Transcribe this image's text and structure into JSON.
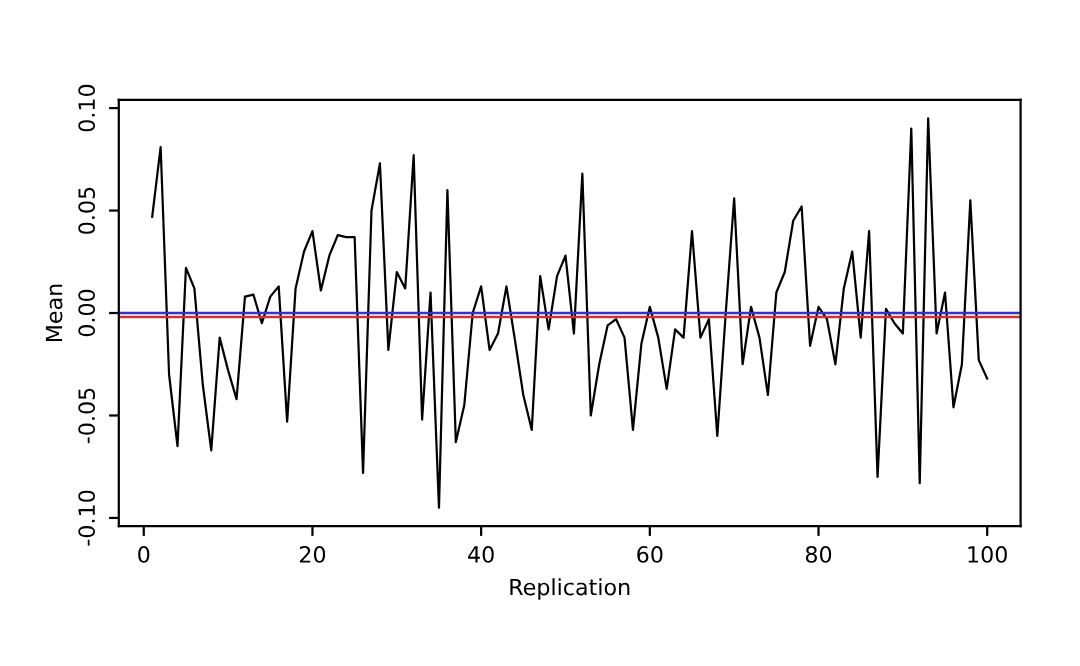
{
  "chart_data": {
    "type": "line",
    "xlabel": "Replication",
    "ylabel": "Mean",
    "x": [
      1,
      2,
      3,
      4,
      5,
      6,
      7,
      8,
      9,
      10,
      11,
      12,
      13,
      14,
      15,
      16,
      17,
      18,
      19,
      20,
      21,
      22,
      23,
      24,
      25,
      26,
      27,
      28,
      29,
      30,
      31,
      32,
      33,
      34,
      35,
      36,
      37,
      38,
      39,
      40,
      41,
      42,
      43,
      44,
      45,
      46,
      47,
      48,
      49,
      50,
      51,
      52,
      53,
      54,
      55,
      56,
      57,
      58,
      59,
      60,
      61,
      62,
      63,
      64,
      65,
      66,
      67,
      68,
      69,
      70,
      71,
      72,
      73,
      74,
      75,
      76,
      77,
      78,
      79,
      80,
      81,
      82,
      83,
      84,
      85,
      86,
      87,
      88,
      89,
      90,
      91,
      92,
      93,
      94,
      95,
      96,
      97,
      98,
      99,
      100
    ],
    "series": [
      {
        "color": "#000000",
        "values": [
          0.047,
          0.081,
          -0.03,
          -0.065,
          0.022,
          0.012,
          -0.035,
          -0.067,
          -0.012,
          -0.028,
          -0.042,
          0.008,
          0.009,
          -0.005,
          0.008,
          0.013,
          -0.053,
          0.012,
          0.03,
          0.04,
          0.011,
          0.028,
          0.038,
          0.037,
          0.037,
          -0.078,
          0.05,
          0.073,
          -0.018,
          0.02,
          0.012,
          0.077,
          -0.052,
          0.01,
          -0.095,
          0.06,
          -0.063,
          -0.045,
          0.0,
          0.013,
          -0.018,
          -0.01,
          0.013,
          -0.013,
          -0.04,
          -0.057,
          0.018,
          -0.008,
          0.018,
          0.028,
          -0.01,
          0.068,
          -0.05,
          -0.025,
          -0.006,
          -0.003,
          -0.012,
          -0.057,
          -0.015,
          0.003,
          -0.012,
          -0.037,
          -0.008,
          -0.012,
          0.04,
          -0.012,
          -0.003,
          -0.06,
          0.0,
          0.056,
          -0.025,
          0.003,
          -0.012,
          -0.04,
          0.01,
          0.02,
          0.045,
          0.052,
          -0.016,
          0.003,
          -0.003,
          -0.025,
          0.012,
          0.03,
          -0.012,
          0.04,
          -0.08,
          0.002,
          -0.005,
          -0.01,
          0.09,
          -0.083,
          0.095,
          -0.01,
          0.01,
          -0.046,
          -0.025,
          0.055,
          -0.023,
          -0.032
        ]
      }
    ],
    "xlim": [
      -2.96,
      103.96
    ],
    "ylim": [
      -0.104,
      0.104
    ],
    "xticks": [
      0,
      20,
      40,
      60,
      80,
      100
    ],
    "yticks": [
      {
        "value": -0.1,
        "label": "-0.10"
      },
      {
        "value": -0.05,
        "label": "-0.05"
      },
      {
        "value": 0,
        "label": "0.00"
      },
      {
        "value": 0.05,
        "label": "0.05"
      },
      {
        "value": 0.1,
        "label": "0.10"
      }
    ],
    "ref_lines": [
      {
        "axis": "y",
        "value": 0,
        "color": "#3333cc"
      },
      {
        "axis": "y",
        "value": -0.002,
        "color": "#cc3333"
      }
    ],
    "grid": false,
    "legend": false,
    "marker": "none",
    "line_style": "solid"
  }
}
